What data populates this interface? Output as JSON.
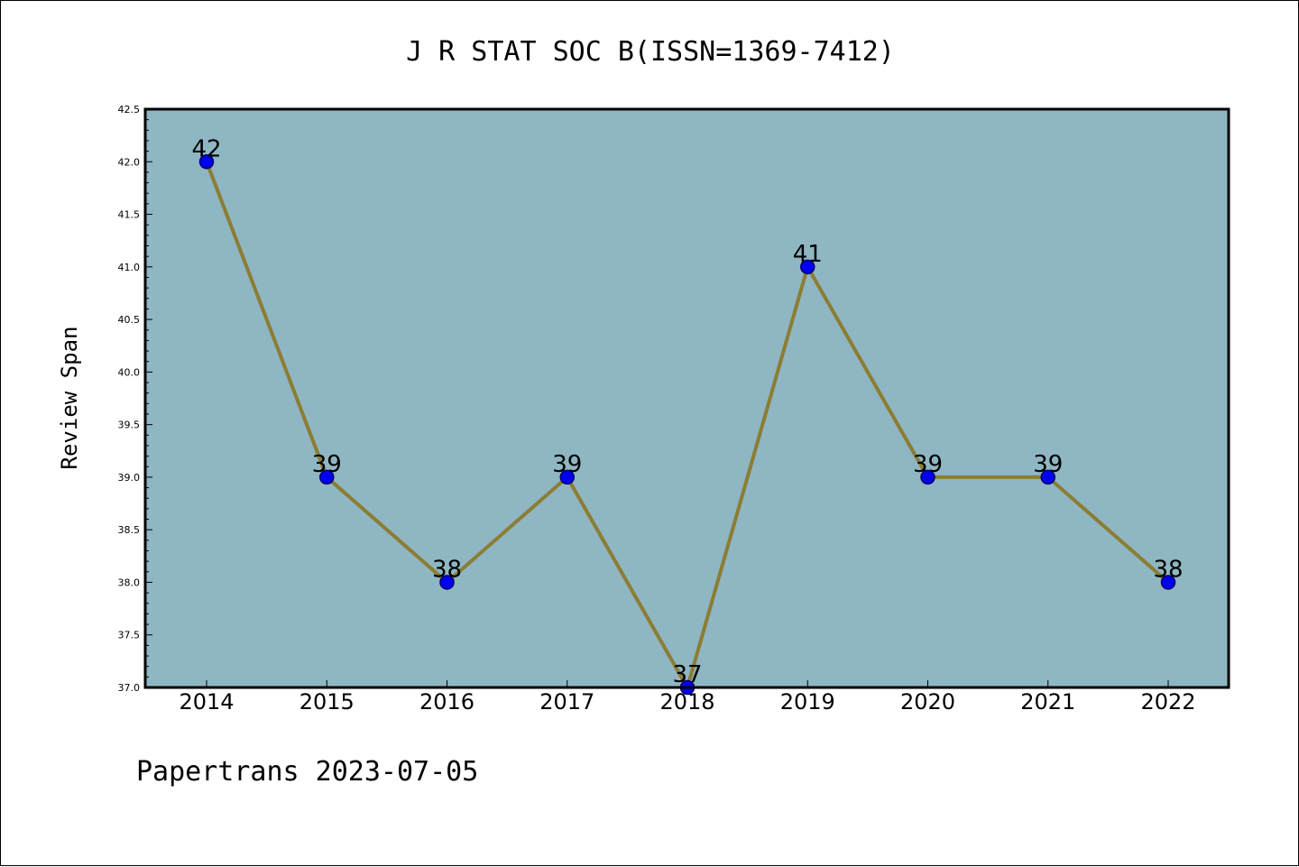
{
  "chart_data": {
    "type": "line",
    "title": "J R STAT SOC B(ISSN=1369-7412)",
    "ylabel": "Review Span",
    "xlabel": "",
    "x": [
      "2014",
      "2015",
      "2016",
      "2017",
      "2018",
      "2019",
      "2020",
      "2021",
      "2022"
    ],
    "series": [
      {
        "values": [
          42,
          39,
          38,
          39,
          37,
          41,
          39,
          39,
          38
        ]
      }
    ],
    "ylim": [
      37.0,
      42.5
    ],
    "yticks": [
      "37.0",
      "37.5",
      "38.0",
      "38.5",
      "39.0",
      "39.5",
      "40.0",
      "40.5",
      "41.0",
      "41.5",
      "42.0",
      "42.5"
    ],
    "grid": false,
    "legend": "none",
    "colors": {
      "plot_background": "#8fb6c3",
      "line": "#8b7d33",
      "marker_fill": "#0000ee",
      "marker_stroke": "#000066"
    }
  },
  "footer": {
    "text": "Papertrans 2023-07-05"
  }
}
